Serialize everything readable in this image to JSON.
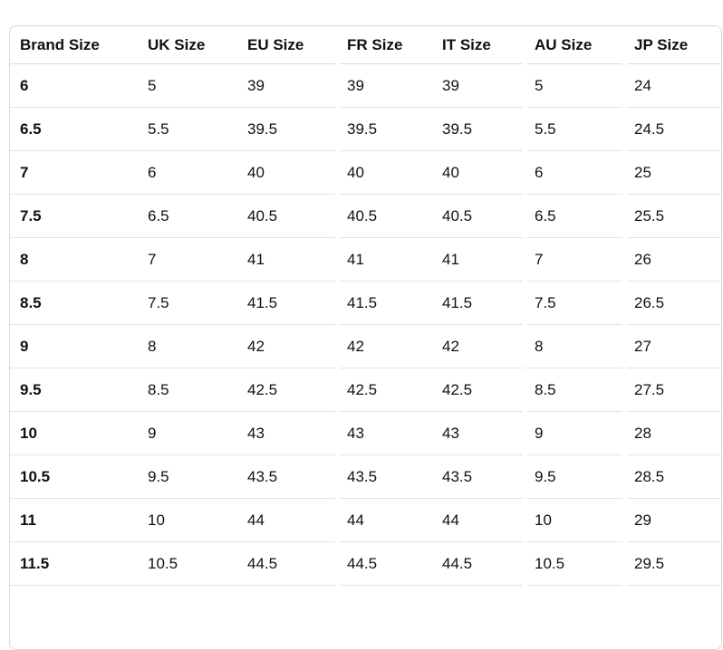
{
  "size_chart": {
    "columns": [
      "Brand Size",
      "UK Size",
      "EU Size",
      "FR Size",
      "IT Size",
      "AU Size",
      "JP Size"
    ],
    "rows": [
      [
        "6",
        "5",
        "39",
        "39",
        "39",
        "5",
        "24"
      ],
      [
        "6.5",
        "5.5",
        "39.5",
        "39.5",
        "39.5",
        "5.5",
        "24.5"
      ],
      [
        "7",
        "6",
        "40",
        "40",
        "40",
        "6",
        "25"
      ],
      [
        "7.5",
        "6.5",
        "40.5",
        "40.5",
        "40.5",
        "6.5",
        "25.5"
      ],
      [
        "8",
        "7",
        "41",
        "41",
        "41",
        "7",
        "26"
      ],
      [
        "8.5",
        "7.5",
        "41.5",
        "41.5",
        "41.5",
        "7.5",
        "26.5"
      ],
      [
        "9",
        "8",
        "42",
        "42",
        "42",
        "8",
        "27"
      ],
      [
        "9.5",
        "8.5",
        "42.5",
        "42.5",
        "42.5",
        "8.5",
        "27.5"
      ],
      [
        "10",
        "9",
        "43",
        "43",
        "43",
        "9",
        "28"
      ],
      [
        "10.5",
        "9.5",
        "43.5",
        "43.5",
        "43.5",
        "9.5",
        "28.5"
      ],
      [
        "11",
        "10",
        "44",
        "44",
        "44",
        "10",
        "29"
      ],
      [
        "11.5",
        "10.5",
        "44.5",
        "44.5",
        "44.5",
        "10.5",
        "29.5"
      ]
    ]
  },
  "colors": {
    "text": "#0f1111",
    "outer_border": "#d5d9d9",
    "header_separator": "#dadddd",
    "row_separator": "#e3e3e3",
    "background": "#ffffff"
  }
}
